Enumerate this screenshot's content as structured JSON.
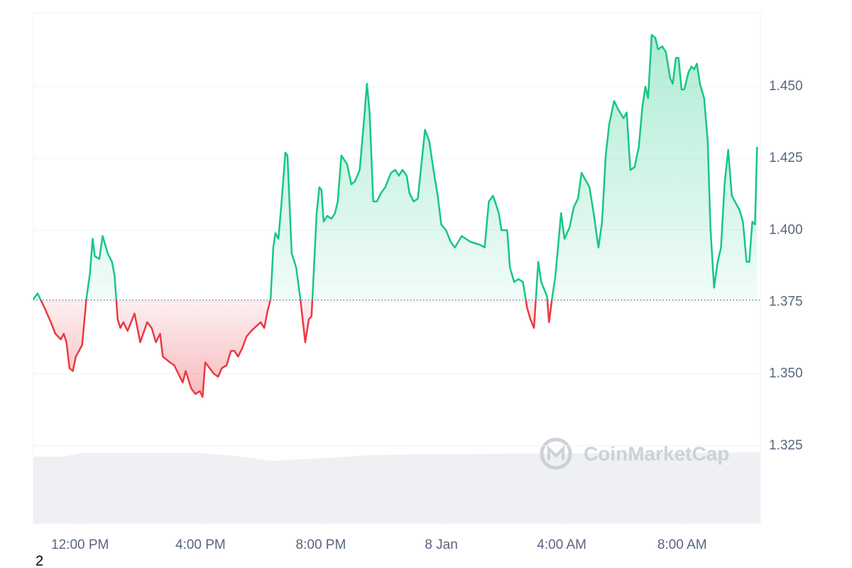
{
  "chart_data": {
    "type": "line",
    "x": [
      10.45,
      10.59,
      10.82,
      11.03,
      11.18,
      11.36,
      11.46,
      11.55,
      11.65,
      11.76,
      11.86,
      12.07,
      12.21,
      12.33,
      12.42,
      12.49,
      12.64,
      12.75,
      12.92,
      13.06,
      13.15,
      13.25,
      13.34,
      13.44,
      13.58,
      13.81,
      14.0,
      14.23,
      14.38,
      14.52,
      14.66,
      14.75,
      14.99,
      15.13,
      15.41,
      15.51,
      15.69,
      15.83,
      15.98,
      16.07,
      16.16,
      16.45,
      16.59,
      16.71,
      16.87,
      17.01,
      17.13,
      17.25,
      17.39,
      17.53,
      17.69,
      18.0,
      18.12,
      18.23,
      18.33,
      18.42,
      18.49,
      18.59,
      18.68,
      18.82,
      18.89,
      19.03,
      19.18,
      19.32,
      19.48,
      19.6,
      19.69,
      19.86,
      19.95,
      20.02,
      20.09,
      20.21,
      20.35,
      20.47,
      20.56,
      20.68,
      20.87,
      21.01,
      21.13,
      21.29,
      21.43,
      21.53,
      21.62,
      21.74,
      21.86,
      22.0,
      22.14,
      22.33,
      22.47,
      22.59,
      22.71,
      22.85,
      22.94,
      23.08,
      23.22,
      23.36,
      23.46,
      23.6,
      23.74,
      23.88,
      24.0,
      24.16,
      24.31,
      24.45,
      24.68,
      24.96,
      25.27,
      25.44,
      25.58,
      25.72,
      25.91,
      26.0,
      26.19,
      26.28,
      26.42,
      26.56,
      26.71,
      26.85,
      26.96,
      27.08,
      27.22,
      27.32,
      27.51,
      27.58,
      27.69,
      27.79,
      27.98,
      28.09,
      28.26,
      28.4,
      28.54,
      28.66,
      28.92,
      29.06,
      29.22,
      29.34,
      29.46,
      29.58,
      29.74,
      29.88,
      30.05,
      30.16,
      30.28,
      30.42,
      30.56,
      30.68,
      30.78,
      30.87,
      30.99,
      31.11,
      31.2,
      31.34,
      31.46,
      31.6,
      31.69,
      31.79,
      31.88,
      31.98,
      32.07,
      32.21,
      32.31,
      32.4,
      32.49,
      32.59,
      32.73,
      32.85,
      32.94,
      33.06,
      33.18,
      33.29,
      33.41,
      33.53,
      33.65,
      33.91,
      34.02,
      34.14,
      34.23,
      34.33,
      34.42,
      34.49
    ],
    "values": [
      1.376,
      1.378,
      1.373,
      1.368,
      1.364,
      1.362,
      1.364,
      1.361,
      1.352,
      1.351,
      1.356,
      1.36,
      1.376,
      1.385,
      1.397,
      1.391,
      1.39,
      1.398,
      1.392,
      1.389,
      1.384,
      1.369,
      1.366,
      1.368,
      1.365,
      1.371,
      1.361,
      1.368,
      1.366,
      1.361,
      1.364,
      1.356,
      1.354,
      1.353,
      1.347,
      1.351,
      1.345,
      1.343,
      1.344,
      1.342,
      1.354,
      1.35,
      1.349,
      1.352,
      1.353,
      1.358,
      1.358,
      1.356,
      1.359,
      1.363,
      1.365,
      1.368,
      1.366,
      1.372,
      1.376,
      1.394,
      1.399,
      1.397,
      1.408,
      1.427,
      1.426,
      1.392,
      1.387,
      1.376,
      1.361,
      1.369,
      1.37,
      1.406,
      1.415,
      1.414,
      1.403,
      1.405,
      1.404,
      1.406,
      1.41,
      1.426,
      1.423,
      1.416,
      1.417,
      1.421,
      1.438,
      1.451,
      1.441,
      1.41,
      1.41,
      1.413,
      1.415,
      1.42,
      1.421,
      1.419,
      1.421,
      1.419,
      1.413,
      1.41,
      1.411,
      1.425,
      1.435,
      1.431,
      1.421,
      1.412,
      1.402,
      1.4,
      1.396,
      1.394,
      1.398,
      1.396,
      1.395,
      1.394,
      1.41,
      1.412,
      1.406,
      1.4,
      1.4,
      1.387,
      1.382,
      1.383,
      1.382,
      1.373,
      1.369,
      1.366,
      1.389,
      1.382,
      1.377,
      1.368,
      1.377,
      1.384,
      1.406,
      1.397,
      1.401,
      1.408,
      1.411,
      1.42,
      1.415,
      1.406,
      1.394,
      1.403,
      1.426,
      1.437,
      1.445,
      1.442,
      1.439,
      1.441,
      1.421,
      1.422,
      1.429,
      1.443,
      1.45,
      1.446,
      1.468,
      1.467,
      1.463,
      1.464,
      1.462,
      1.453,
      1.451,
      1.46,
      1.46,
      1.449,
      1.449,
      1.455,
      1.457,
      1.456,
      1.458,
      1.451,
      1.446,
      1.431,
      1.401,
      1.38,
      1.389,
      1.394,
      1.416,
      1.428,
      1.412,
      1.407,
      1.403,
      1.389,
      1.389,
      1.403,
      1.402,
      1.429
    ],
    "baseline": 1.3757,
    "up_color": "#16c784",
    "down_color": "#ea3943",
    "xlim": [
      10.45,
      34.6
    ],
    "xticks": [
      {
        "value": 12,
        "label": "12:00 PM"
      },
      {
        "value": 16,
        "label": "4:00 PM"
      },
      {
        "value": 20,
        "label": "8:00 PM"
      },
      {
        "value": 24,
        "label": "8 Jan"
      },
      {
        "value": 28,
        "label": "4:00 AM"
      },
      {
        "value": 32,
        "label": "8:00 AM"
      }
    ],
    "ylim": [
      1.298,
      1.4757
    ],
    "yticks": [
      1.325,
      {
        "value": 1.35,
        "label": "1.350"
      },
      1.375,
      {
        "value": 1.4,
        "label": "1.400"
      },
      1.425,
      {
        "value": 1.45,
        "label": "1.450"
      }
    ],
    "grid": true,
    "watermark": "CoinMarketCap",
    "corner_label": "2"
  }
}
